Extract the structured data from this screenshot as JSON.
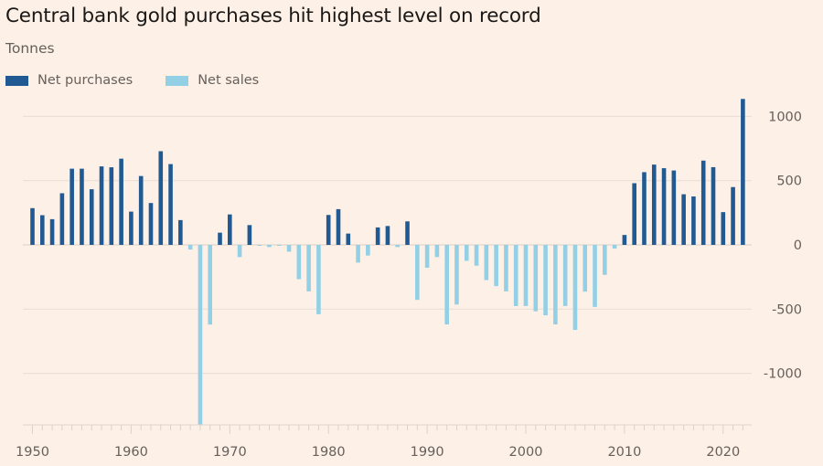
{
  "chart_data": {
    "type": "bar",
    "title": "Central bank gold purchases hit highest level on record",
    "subtitle": "Tonnes",
    "xlabel": "",
    "ylabel": "Tonnes",
    "ylim": [
      -1400,
      1200
    ],
    "y_ticks": [
      1000,
      500,
      0,
      -500,
      -1000
    ],
    "x_ticks": [
      1950,
      1960,
      1970,
      1980,
      1990,
      2000,
      2010,
      2020
    ],
    "xlim": [
      1949,
      2023
    ],
    "grid": true,
    "legend_position": "top-left",
    "legend": [
      {
        "name": "Net purchases",
        "color": "#215a92"
      },
      {
        "name": "Net sales",
        "color": "#93d0e6"
      }
    ],
    "years": [
      1950,
      1951,
      1952,
      1953,
      1954,
      1955,
      1956,
      1957,
      1958,
      1959,
      1960,
      1961,
      1962,
      1963,
      1964,
      1965,
      1966,
      1967,
      1968,
      1969,
      1970,
      1971,
      1972,
      1973,
      1974,
      1975,
      1976,
      1977,
      1978,
      1979,
      1980,
      1981,
      1982,
      1983,
      1984,
      1985,
      1986,
      1987,
      1988,
      1989,
      1990,
      1991,
      1992,
      1993,
      1994,
      1995,
      1996,
      1997,
      1998,
      1999,
      2000,
      2001,
      2002,
      2003,
      2004,
      2005,
      2006,
      2007,
      2008,
      2009,
      2010,
      2011,
      2012,
      2013,
      2014,
      2015,
      2016,
      2017,
      2018,
      2019,
      2020,
      2021,
      2022
    ],
    "values": [
      286,
      231,
      200,
      402,
      593,
      593,
      433,
      611,
      604,
      671,
      259,
      536,
      326,
      729,
      629,
      193,
      -36,
      -1400,
      -620,
      95,
      237,
      -95,
      154,
      -5,
      -17,
      -5,
      -53,
      -267,
      -362,
      -540,
      233,
      278,
      88,
      -138,
      -83,
      136,
      147,
      -17,
      183,
      -428,
      -178,
      -95,
      -619,
      -464,
      -124,
      -162,
      -274,
      -321,
      -362,
      -476,
      -476,
      -517,
      -548,
      -619,
      -476,
      -662,
      -364,
      -483,
      -233,
      -29,
      77,
      480,
      566,
      625,
      597,
      579,
      394,
      377,
      656,
      605,
      255,
      450,
      1136
    ]
  }
}
